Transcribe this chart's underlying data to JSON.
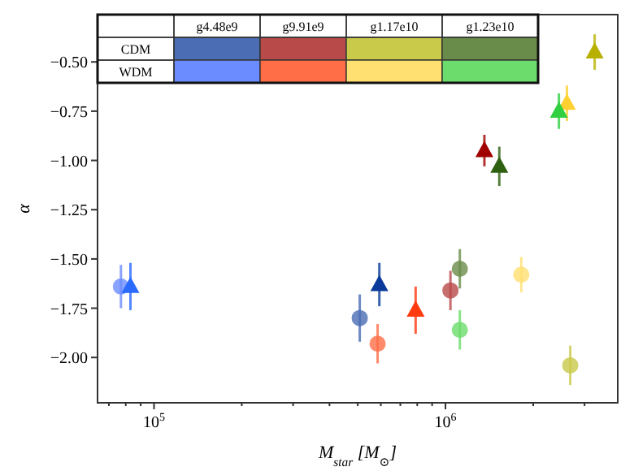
{
  "chart_data": {
    "type": "scatter",
    "xlabel": "M$_{star}$ [M$_{⊙}$]",
    "ylabel": "α",
    "log": "x",
    "grid": false,
    "xlim": [
      64000,
      3900000
    ],
    "ylim": [
      -2.23,
      -0.26
    ],
    "xticks": [
      {
        "value": 70000,
        "label": null
      },
      {
        "value": 80000,
        "label": null
      },
      {
        "value": 90000,
        "label": null
      },
      {
        "value": 100000,
        "label": "10$^{5}$"
      },
      {
        "value": 200000,
        "label": null
      },
      {
        "value": 300000,
        "label": null
      },
      {
        "value": 400000,
        "label": null
      },
      {
        "value": 500000,
        "label": null
      },
      {
        "value": 600000,
        "label": null
      },
      {
        "value": 700000,
        "label": null
      },
      {
        "value": 800000,
        "label": null
      },
      {
        "value": 900000,
        "label": null
      },
      {
        "value": 1000000,
        "label": "10$^{6}$"
      },
      {
        "value": 2000000,
        "label": null
      },
      {
        "value": 3000000,
        "label": null
      }
    ],
    "yticks": [
      {
        "value": -2,
        "label": "−2.00"
      },
      {
        "value": -1.75,
        "label": "−1.75"
      },
      {
        "value": -1.5,
        "label": "−1.50"
      },
      {
        "value": -1.25,
        "label": "−1.25"
      },
      {
        "value": -1,
        "label": "−1.00"
      },
      {
        "value": -0.75,
        "label": "−0.75"
      },
      {
        "value": -0.5,
        "label": "−0.50"
      }
    ],
    "annotations": [
      "g4.48e9",
      "g9.91e9",
      "g1.17e10",
      "g1.23e10",
      "CDM",
      "WDM"
    ],
    "series": [
      {
        "marker": "circle",
        "x": [
          508000,
          1040000,
          2680000,
          1120000
        ],
        "values": [
          -1.8,
          -1.66,
          -2.04,
          -1.55
        ],
        "errors": [
          0.12,
          0.1,
          0.1,
          0.1
        ],
        "colors": [
          "#4a6db4",
          "#b84a4a",
          "#c9c94a",
          "#6a8c4a"
        ]
      },
      {
        "marker": "circle",
        "x": [
          77000,
          585000,
          1820000,
          1120000
        ],
        "values": [
          -1.64,
          -1.93,
          -1.58,
          -1.86
        ],
        "errors": [
          0.11,
          0.1,
          0.09,
          0.1
        ],
        "colors": [
          "#6b8cff",
          "#ff6e47",
          "#ffe070",
          "#6cdc6c"
        ]
      },
      {
        "marker": "triangle",
        "x": [
          593000,
          1360000,
          3250000,
          1530000
        ],
        "values": [
          -1.63,
          -0.95,
          -0.45,
          -1.03
        ],
        "errors": [
          0.11,
          0.08,
          0.09,
          0.1
        ],
        "colors": [
          "#0a3a9a",
          "#a00000",
          "#b8b000",
          "#2e6010"
        ]
      },
      {
        "marker": "triangle",
        "x": [
          83000,
          790000,
          2610000,
          2450000
        ],
        "values": [
          -1.64,
          -1.76,
          -0.71,
          -0.75
        ],
        "errors": [
          0.12,
          0.12,
          0.09,
          0.09
        ],
        "colors": [
          "#2a6aff",
          "#ff3a10",
          "#ffd030",
          "#30d040"
        ]
      }
    ]
  }
}
